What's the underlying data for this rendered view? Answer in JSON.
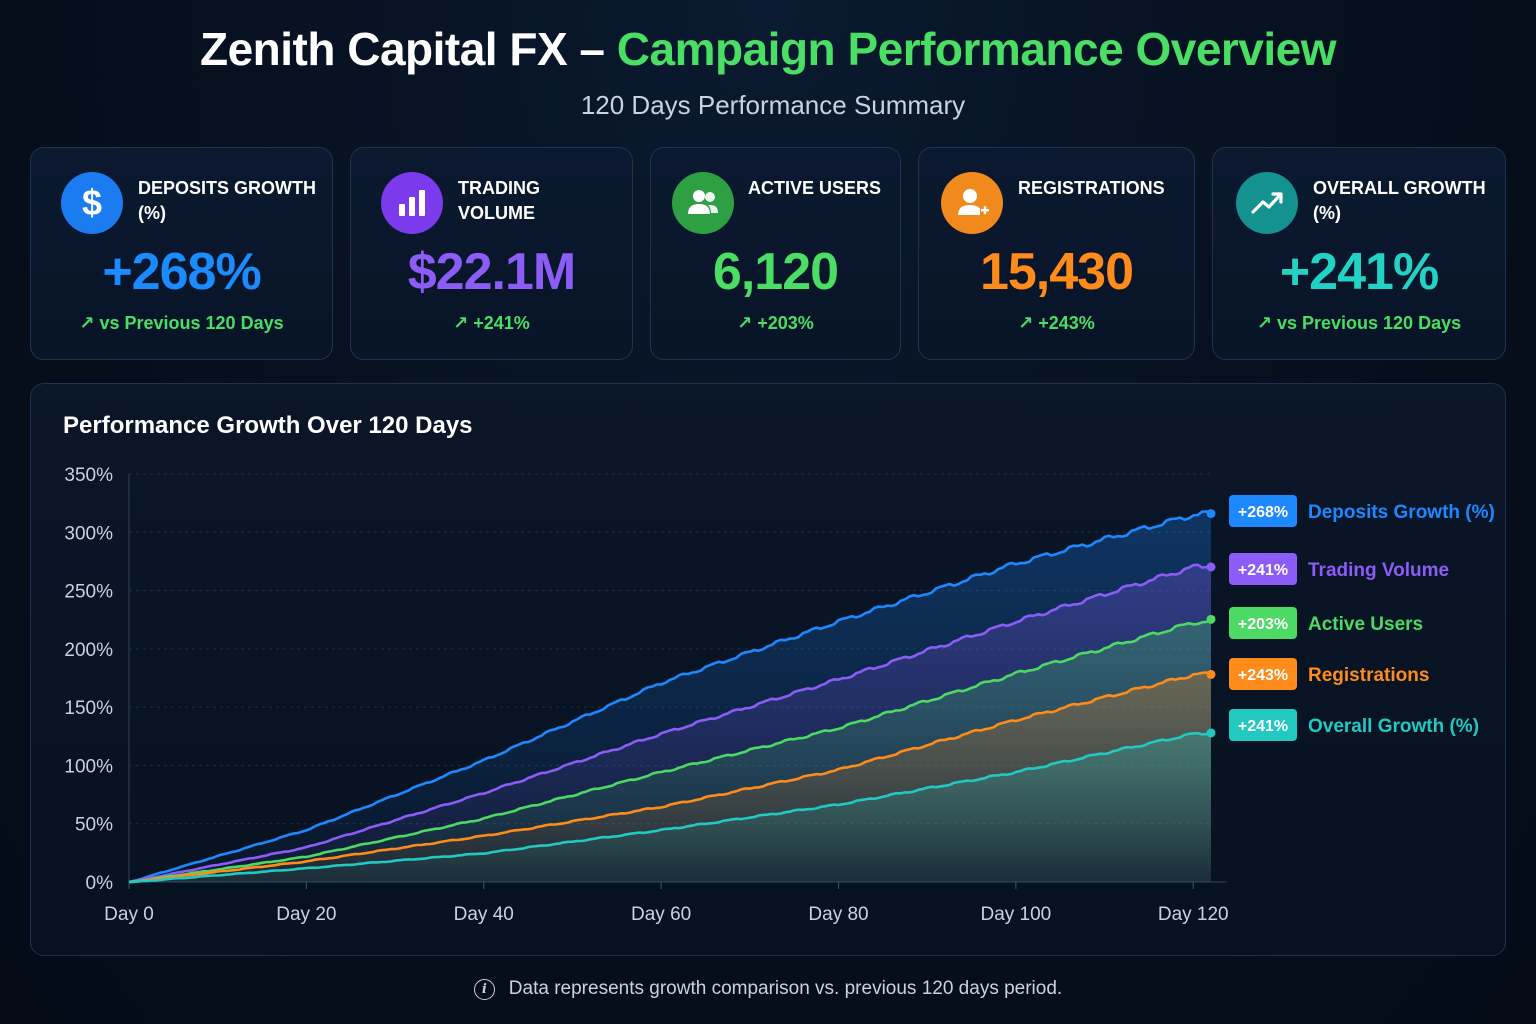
{
  "header": {
    "title_part1": "Zenith Capital FX –",
    "title_part2": "Campaign Performance Overview",
    "subtitle": "120 Days Performance Summary"
  },
  "cards": [
    {
      "label": "DEPOSITS GROWTH (%)",
      "value": "+268%",
      "delta": "↗ vs Previous 120 Days",
      "color": "#1a8cff",
      "icon_bg": "#1a7cf0",
      "icon": "dollar-icon"
    },
    {
      "label": "TRADING VOLUME",
      "value": "$22.1M",
      "delta": "↗ +241%",
      "color": "#8b5cf6",
      "icon_bg": "#7c3aed",
      "icon": "bar-chart-icon"
    },
    {
      "label": "ACTIVE USERS",
      "value": "6,120",
      "delta": "↗ +203%",
      "color": "#4ade64",
      "icon_bg": "#2ea043",
      "icon": "users-icon"
    },
    {
      "label": "REGISTRATIONS",
      "value": "15,430",
      "delta": "↗ +243%",
      "color": "#ff8c1a",
      "icon_bg": "#f08a1c",
      "icon": "add-user-icon"
    },
    {
      "label": "OVERALL GROWTH (%)",
      "value": "+241%",
      "delta": "↗ vs Previous 120 Days",
      "color": "#22d3c5",
      "icon_bg": "#14928f",
      "icon": "trend-up-icon"
    }
  ],
  "chart_data": {
    "type": "area",
    "title": "Performance Growth Over 120 Days",
    "x": [
      0,
      20,
      40,
      60,
      80,
      100,
      120
    ],
    "x_ticks": [
      "Day 0",
      "Day 20",
      "Day 40",
      "Day 60",
      "Day 80",
      "Day 100",
      "Day 120"
    ],
    "y_ticks": [
      "0%",
      "50%",
      "100%",
      "150%",
      "200%",
      "250%",
      "300%",
      "350%"
    ],
    "ylim": [
      0,
      350
    ],
    "xlim": [
      0,
      122
    ],
    "grid": true,
    "legend_position": "right",
    "series": [
      {
        "name": "Deposits Growth (%)",
        "badge": "+268%",
        "color": "#1e88ff",
        "values": [
          0,
          45,
          105,
          172,
          225,
          275,
          317
        ]
      },
      {
        "name": "Trading Volume",
        "badge": "+241%",
        "color": "#8b5cf6",
        "values": [
          0,
          30,
          77,
          128,
          175,
          225,
          272
        ]
      },
      {
        "name": "Active Users",
        "badge": "+203%",
        "color": "#4cd964",
        "values": [
          0,
          22,
          55,
          95,
          133,
          180,
          224
        ]
      },
      {
        "name": "Registrations",
        "badge": "+243%",
        "color": "#ff8c1a",
        "values": [
          0,
          18,
          40,
          65,
          97,
          140,
          179
        ]
      },
      {
        "name": "Overall Growth (%)",
        "badge": "+241%",
        "color": "#22c9c0",
        "values": [
          0,
          12,
          25,
          45,
          67,
          95,
          128
        ]
      }
    ]
  },
  "footnote": "Data represents growth comparison vs. previous 120 days period."
}
